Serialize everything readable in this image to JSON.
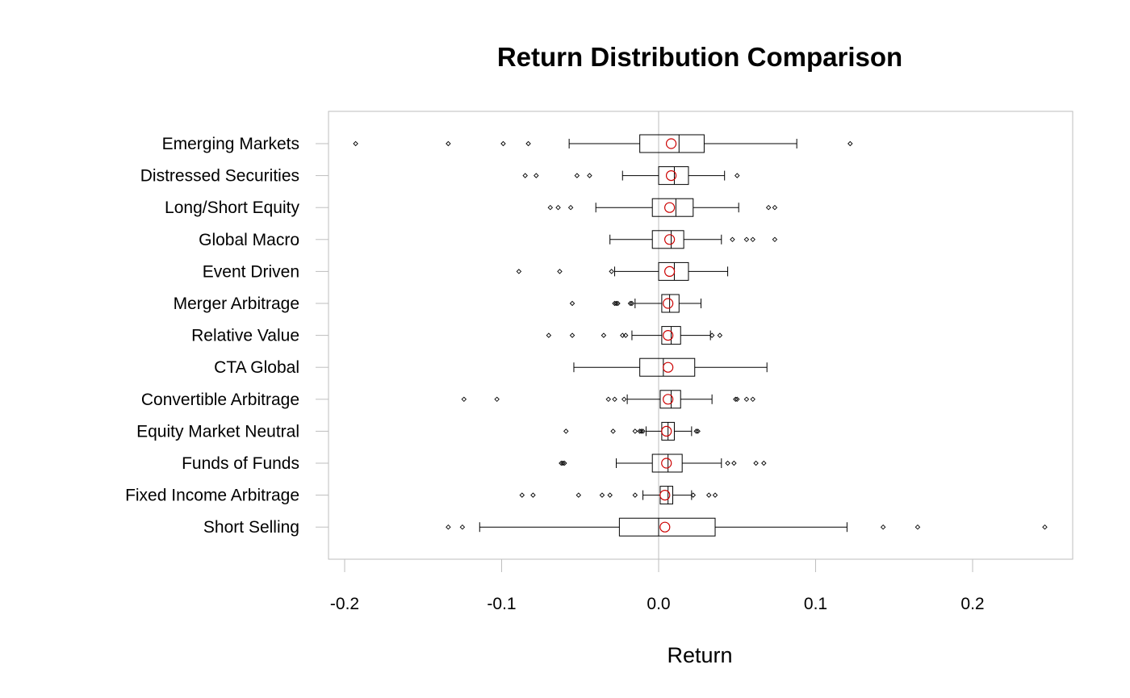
{
  "chart_data": {
    "type": "boxplot",
    "title": "Return Distribution Comparison",
    "xlabel": "Return",
    "ylabel": "",
    "xlim": [
      -0.21,
      0.264
    ],
    "xticks": [
      -0.2,
      -0.1,
      0.0,
      0.1,
      0.2
    ],
    "xtick_labels": [
      "-0.2",
      "-0.1",
      "0.0",
      "0.1",
      "0.2"
    ],
    "reference_line": 0.0,
    "colors": {
      "box": "#000000",
      "mean_marker": "#cc0000",
      "frame": "#bebebe",
      "reference": "#bebebe"
    },
    "series": [
      {
        "name": "Emerging Markets",
        "whisker_low": -0.057,
        "q1": -0.012,
        "median": 0.013,
        "q3": 0.029,
        "whisker_high": 0.088,
        "mean": 0.008,
        "outliers": [
          -0.193,
          -0.134,
          -0.099,
          -0.083,
          0.122
        ]
      },
      {
        "name": "Distressed Securities",
        "whisker_low": -0.023,
        "q1": 0.0,
        "median": 0.01,
        "q3": 0.019,
        "whisker_high": 0.042,
        "mean": 0.008,
        "outliers": [
          -0.085,
          -0.078,
          -0.052,
          -0.044,
          0.05
        ]
      },
      {
        "name": "Long/Short Equity",
        "whisker_low": -0.04,
        "q1": -0.004,
        "median": 0.011,
        "q3": 0.022,
        "whisker_high": 0.051,
        "mean": 0.007,
        "outliers": [
          -0.069,
          -0.064,
          -0.056,
          0.07,
          0.074
        ]
      },
      {
        "name": "Global Macro",
        "whisker_low": -0.031,
        "q1": -0.004,
        "median": 0.008,
        "q3": 0.016,
        "whisker_high": 0.04,
        "mean": 0.007,
        "outliers": [
          0.047,
          0.056,
          0.06,
          0.074
        ]
      },
      {
        "name": "Event Driven",
        "whisker_low": -0.028,
        "q1": 0.0,
        "median": 0.01,
        "q3": 0.019,
        "whisker_high": 0.044,
        "mean": 0.007,
        "outliers": [
          -0.089,
          -0.063,
          -0.03
        ]
      },
      {
        "name": "Merger Arbitrage",
        "whisker_low": -0.015,
        "q1": 0.002,
        "median": 0.007,
        "q3": 0.013,
        "whisker_high": 0.027,
        "mean": 0.006,
        "outliers": [
          -0.055,
          -0.028,
          -0.027,
          -0.026,
          -0.018,
          -0.017
        ]
      },
      {
        "name": "Relative Value",
        "whisker_low": -0.017,
        "q1": 0.002,
        "median": 0.008,
        "q3": 0.014,
        "whisker_high": 0.033,
        "mean": 0.006,
        "outliers": [
          -0.07,
          -0.055,
          -0.035,
          -0.023,
          -0.021,
          0.034,
          0.039
        ]
      },
      {
        "name": "CTA Global",
        "whisker_low": -0.054,
        "q1": -0.012,
        "median": 0.003,
        "q3": 0.023,
        "whisker_high": 0.069,
        "mean": 0.006,
        "outliers": []
      },
      {
        "name": "Convertible Arbitrage",
        "whisker_low": -0.02,
        "q1": 0.001,
        "median": 0.008,
        "q3": 0.014,
        "whisker_high": 0.034,
        "mean": 0.006,
        "outliers": [
          -0.124,
          -0.103,
          -0.032,
          -0.028,
          -0.022,
          0.049,
          0.05,
          0.056,
          0.06
        ]
      },
      {
        "name": "Equity Market Neutral",
        "whisker_low": -0.008,
        "q1": 0.002,
        "median": 0.006,
        "q3": 0.01,
        "whisker_high": 0.021,
        "mean": 0.005,
        "outliers": [
          -0.059,
          -0.029,
          -0.015,
          -0.012,
          -0.011,
          -0.01,
          0.024,
          0.025
        ]
      },
      {
        "name": "Funds of Funds",
        "whisker_low": -0.027,
        "q1": -0.004,
        "median": 0.006,
        "q3": 0.015,
        "whisker_high": 0.04,
        "mean": 0.005,
        "outliers": [
          -0.062,
          -0.061,
          -0.06,
          0.044,
          0.048,
          0.062,
          0.067
        ]
      },
      {
        "name": "Fixed Income Arbitrage",
        "whisker_low": -0.01,
        "q1": 0.001,
        "median": 0.006,
        "q3": 0.009,
        "whisker_high": 0.021,
        "mean": 0.004,
        "outliers": [
          -0.087,
          -0.08,
          -0.051,
          -0.036,
          -0.031,
          -0.015,
          0.022,
          0.032,
          0.036
        ]
      },
      {
        "name": "Short Selling",
        "whisker_low": -0.114,
        "q1": -0.025,
        "median": 0.0,
        "q3": 0.036,
        "whisker_high": 0.12,
        "mean": 0.004,
        "outliers": [
          -0.134,
          -0.125,
          0.143,
          0.165,
          0.246
        ]
      }
    ]
  }
}
